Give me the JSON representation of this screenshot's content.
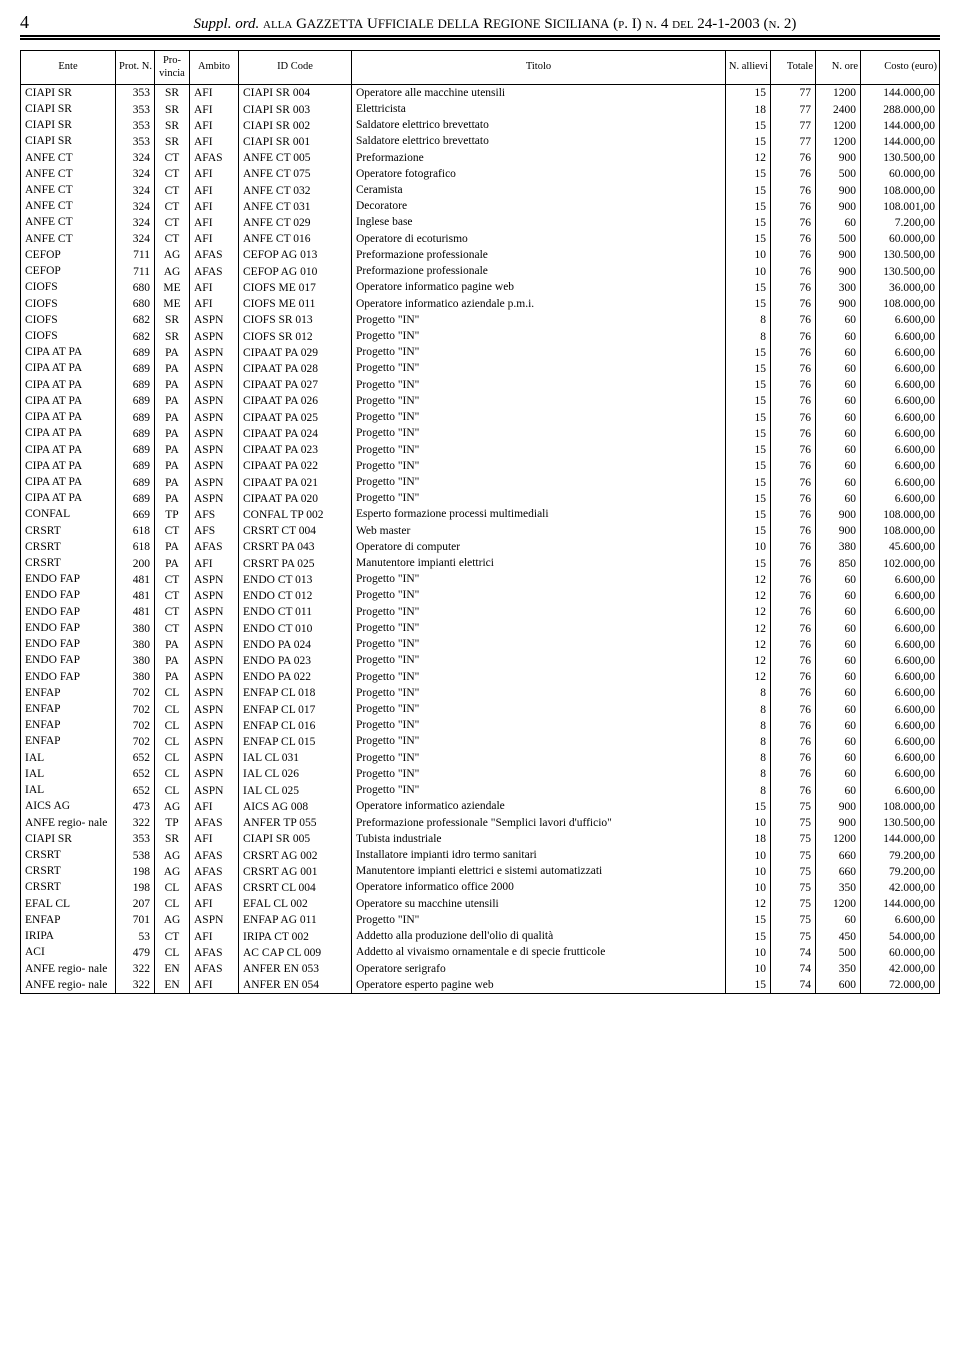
{
  "page_number": "4",
  "header": "Suppl. ord. alla Gazzetta Ufficiale della Regione Siciliana (p. I) n. 4 del 24-1-2003 (n. 2)",
  "columns": [
    "Ente",
    "Prot. N.",
    "Pro- vincia",
    "Ambito",
    "ID Code",
    "Titolo",
    "N. allievi",
    "Totale",
    "N. ore",
    "Costo (euro)"
  ],
  "rows": [
    [
      "CIAPI SR",
      "353",
      "SR",
      "AFI",
      "CIAPI SR 004",
      "Operatore alle macchine utensili",
      "15",
      "77",
      "1200",
      "144.000,00"
    ],
    [
      "CIAPI SR",
      "353",
      "SR",
      "AFI",
      "CIAPI SR 003",
      "Elettricista",
      "18",
      "77",
      "2400",
      "288.000,00"
    ],
    [
      "CIAPI SR",
      "353",
      "SR",
      "AFI",
      "CIAPI SR 002",
      "Saldatore elettrico brevettato",
      "15",
      "77",
      "1200",
      "144.000,00"
    ],
    [
      "CIAPI SR",
      "353",
      "SR",
      "AFI",
      "CIAPI SR 001",
      "Saldatore elettrico brevettato",
      "15",
      "77",
      "1200",
      "144.000,00"
    ],
    [
      "ANFE CT",
      "324",
      "CT",
      "AFAS",
      "ANFE CT 005",
      "Preformazione",
      "12",
      "76",
      "900",
      "130.500,00"
    ],
    [
      "ANFE CT",
      "324",
      "CT",
      "AFI",
      "ANFE CT 075",
      "Operatore fotografico",
      "15",
      "76",
      "500",
      "60.000,00"
    ],
    [
      "ANFE CT",
      "324",
      "CT",
      "AFI",
      "ANFE CT 032",
      "Ceramista",
      "15",
      "76",
      "900",
      "108.000,00"
    ],
    [
      "ANFE CT",
      "324",
      "CT",
      "AFI",
      "ANFE CT 031",
      "Decoratore",
      "15",
      "76",
      "900",
      "108.001,00"
    ],
    [
      "ANFE CT",
      "324",
      "CT",
      "AFI",
      "ANFE CT 029",
      "Inglese base",
      "15",
      "76",
      "60",
      "7.200,00"
    ],
    [
      "ANFE CT",
      "324",
      "CT",
      "AFI",
      "ANFE CT 016",
      "Operatore di ecoturismo",
      "15",
      "76",
      "500",
      "60.000,00"
    ],
    [
      "CEFOP",
      "711",
      "AG",
      "AFAS",
      "CEFOP AG 013",
      "Preformazione professionale",
      "10",
      "76",
      "900",
      "130.500,00"
    ],
    [
      "CEFOP",
      "711",
      "AG",
      "AFAS",
      "CEFOP AG 010",
      "Preformazione professionale",
      "10",
      "76",
      "900",
      "130.500,00"
    ],
    [
      "CIOFS",
      "680",
      "ME",
      "AFI",
      "CIOFS ME 017",
      "Operatore informatico pagine web",
      "15",
      "76",
      "300",
      "36.000,00"
    ],
    [
      "CIOFS",
      "680",
      "ME",
      "AFI",
      "CIOFS ME 011",
      "Operatore informatico aziendale p.m.i.",
      "15",
      "76",
      "900",
      "108.000,00"
    ],
    [
      "CIOFS",
      "682",
      "SR",
      "ASPN",
      "CIOFS SR 013",
      "Progetto \"IN\"",
      "8",
      "76",
      "60",
      "6.600,00"
    ],
    [
      "CIOFS",
      "682",
      "SR",
      "ASPN",
      "CIOFS SR 012",
      "Progetto \"IN\"",
      "8",
      "76",
      "60",
      "6.600,00"
    ],
    [
      "CIPA AT PA",
      "689",
      "PA",
      "ASPN",
      "CIPAAT PA 029",
      "Progetto \"IN\"",
      "15",
      "76",
      "60",
      "6.600,00"
    ],
    [
      "CIPA AT PA",
      "689",
      "PA",
      "ASPN",
      "CIPAAT PA 028",
      "Progetto \"IN\"",
      "15",
      "76",
      "60",
      "6.600,00"
    ],
    [
      "CIPA AT PA",
      "689",
      "PA",
      "ASPN",
      "CIPAAT PA 027",
      "Progetto \"IN\"",
      "15",
      "76",
      "60",
      "6.600,00"
    ],
    [
      "CIPA AT PA",
      "689",
      "PA",
      "ASPN",
      "CIPAAT PA 026",
      "Progetto \"IN\"",
      "15",
      "76",
      "60",
      "6.600,00"
    ],
    [
      "CIPA AT PA",
      "689",
      "PA",
      "ASPN",
      "CIPAAT PA 025",
      "Progetto \"IN\"",
      "15",
      "76",
      "60",
      "6.600,00"
    ],
    [
      "CIPA AT PA",
      "689",
      "PA",
      "ASPN",
      "CIPAAT PA 024",
      "Progetto \"IN\"",
      "15",
      "76",
      "60",
      "6.600,00"
    ],
    [
      "CIPA AT PA",
      "689",
      "PA",
      "ASPN",
      "CIPAAT PA 023",
      "Progetto \"IN\"",
      "15",
      "76",
      "60",
      "6.600,00"
    ],
    [
      "CIPA AT PA",
      "689",
      "PA",
      "ASPN",
      "CIPAAT PA 022",
      "Progetto \"IN\"",
      "15",
      "76",
      "60",
      "6.600,00"
    ],
    [
      "CIPA AT PA",
      "689",
      "PA",
      "ASPN",
      "CIPAAT PA 021",
      "Progetto \"IN\"",
      "15",
      "76",
      "60",
      "6.600,00"
    ],
    [
      "CIPA AT PA",
      "689",
      "PA",
      "ASPN",
      "CIPAAT PA 020",
      "Progetto \"IN\"",
      "15",
      "76",
      "60",
      "6.600,00"
    ],
    [
      "CONFAL",
      "669",
      "TP",
      "AFS",
      "CONFAL TP 002",
      "Esperto formazione processi multimediali",
      "15",
      "76",
      "900",
      "108.000,00"
    ],
    [
      "CRSRT",
      "618",
      "CT",
      "AFS",
      "CRSRT CT 004",
      "Web master",
      "15",
      "76",
      "900",
      "108.000,00"
    ],
    [
      "CRSRT",
      "618",
      "PA",
      "AFAS",
      "CRSRT PA 043",
      "Operatore di computer",
      "10",
      "76",
      "380",
      "45.600,00"
    ],
    [
      "CRSRT",
      "200",
      "PA",
      "AFI",
      "CRSRT PA 025",
      "Manutentore impianti elettrici",
      "15",
      "76",
      "850",
      "102.000,00"
    ],
    [
      "ENDO FAP",
      "481",
      "CT",
      "ASPN",
      "ENDO CT 013",
      "Progetto \"IN\"",
      "12",
      "76",
      "60",
      "6.600,00"
    ],
    [
      "ENDO FAP",
      "481",
      "CT",
      "ASPN",
      "ENDO CT 012",
      "Progetto \"IN\"",
      "12",
      "76",
      "60",
      "6.600,00"
    ],
    [
      "ENDO FAP",
      "481",
      "CT",
      "ASPN",
      "ENDO CT 011",
      "Progetto \"IN\"",
      "12",
      "76",
      "60",
      "6.600,00"
    ],
    [
      "ENDO FAP",
      "380",
      "CT",
      "ASPN",
      "ENDO CT 010",
      "Progetto \"IN\"",
      "12",
      "76",
      "60",
      "6.600,00"
    ],
    [
      "ENDO FAP",
      "380",
      "PA",
      "ASPN",
      "ENDO PA 024",
      "Progetto \"IN\"",
      "12",
      "76",
      "60",
      "6.600,00"
    ],
    [
      "ENDO FAP",
      "380",
      "PA",
      "ASPN",
      "ENDO PA 023",
      "Progetto \"IN\"",
      "12",
      "76",
      "60",
      "6.600,00"
    ],
    [
      "ENDO FAP",
      "380",
      "PA",
      "ASPN",
      "ENDO PA 022",
      "Progetto \"IN\"",
      "12",
      "76",
      "60",
      "6.600,00"
    ],
    [
      "ENFAP",
      "702",
      "CL",
      "ASPN",
      "ENFAP CL 018",
      "Progetto \"IN\"",
      "8",
      "76",
      "60",
      "6.600,00"
    ],
    [
      "ENFAP",
      "702",
      "CL",
      "ASPN",
      "ENFAP CL 017",
      "Progetto \"IN\"",
      "8",
      "76",
      "60",
      "6.600,00"
    ],
    [
      "ENFAP",
      "702",
      "CL",
      "ASPN",
      "ENFAP CL 016",
      "Progetto \"IN\"",
      "8",
      "76",
      "60",
      "6.600,00"
    ],
    [
      "ENFAP",
      "702",
      "CL",
      "ASPN",
      "ENFAP CL 015",
      "Progetto \"IN\"",
      "8",
      "76",
      "60",
      "6.600,00"
    ],
    [
      "IAL",
      "652",
      "CL",
      "ASPN",
      "IAL CL 031",
      "Progetto \"IN\"",
      "8",
      "76",
      "60",
      "6.600,00"
    ],
    [
      "IAL",
      "652",
      "CL",
      "ASPN",
      "IAL CL 026",
      "Progetto \"IN\"",
      "8",
      "76",
      "60",
      "6.600,00"
    ],
    [
      "IAL",
      "652",
      "CL",
      "ASPN",
      "IAL CL 025",
      "Progetto \"IN\"",
      "8",
      "76",
      "60",
      "6.600,00"
    ],
    [
      "AICS AG",
      "473",
      "AG",
      "AFI",
      "AICS AG 008",
      "Operatore informatico aziendale",
      "15",
      "75",
      "900",
      "108.000,00"
    ],
    [
      "ANFE regio- nale",
      "322",
      "TP",
      "AFAS",
      "ANFER TP 055",
      "Preformazione professionale \"Semplici lavori d'ufficio\"",
      "10",
      "75",
      "900",
      "130.500,00"
    ],
    [
      "CIAPI SR",
      "353",
      "SR",
      "AFI",
      "CIAPI SR 005",
      "Tubista industriale",
      "18",
      "75",
      "1200",
      "144.000,00"
    ],
    [
      "CRSRT",
      "538",
      "AG",
      "AFAS",
      "CRSRT AG 002",
      "Installatore impianti idro termo sanitari",
      "10",
      "75",
      "660",
      "79.200,00"
    ],
    [
      "CRSRT",
      "198",
      "AG",
      "AFAS",
      "CRSRT AG 001",
      "Manutentore impianti elettrici e sistemi automatizzati",
      "10",
      "75",
      "660",
      "79.200,00"
    ],
    [
      "CRSRT",
      "198",
      "CL",
      "AFAS",
      "CRSRT CL 004",
      "Operatore informatico office 2000",
      "10",
      "75",
      "350",
      "42.000,00"
    ],
    [
      "EFAL CL",
      "207",
      "CL",
      "AFI",
      "EFAL CL 002",
      "Operatore su macchine utensili",
      "12",
      "75",
      "1200",
      "144.000,00"
    ],
    [
      "ENFAP",
      "701",
      "AG",
      "ASPN",
      "ENFAP AG 011",
      "Progetto \"IN\"",
      "15",
      "75",
      "60",
      "6.600,00"
    ],
    [
      "IRIPA",
      "53",
      "CT",
      "AFI",
      "IRIPA CT 002",
      "Addetto alla produzione dell'olio di qualità",
      "15",
      "75",
      "450",
      "54.000,00"
    ],
    [
      "ACI",
      "479",
      "CL",
      "AFAS",
      "AC CAP CL 009",
      "Addetto al vivaismo ornamentale e di specie frutticole",
      "10",
      "74",
      "500",
      "60.000,00"
    ],
    [
      "ANFE regio- nale",
      "322",
      "EN",
      "AFAS",
      "ANFER EN 053",
      "Operatore serigrafo",
      "10",
      "74",
      "350",
      "42.000,00"
    ],
    [
      "ANFE regio- nale",
      "322",
      "EN",
      "AFI",
      "ANFER EN 054",
      "Operatore esperto pagine web",
      "15",
      "74",
      "600",
      "72.000,00"
    ]
  ]
}
